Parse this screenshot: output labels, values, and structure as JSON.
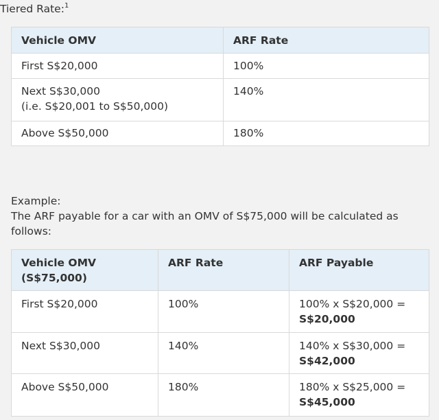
{
  "tiered": {
    "title": "Tiered Rate:",
    "footnote": "1",
    "headers": [
      "Vehicle OMV",
      "ARF Rate"
    ],
    "rows": [
      {
        "omv": "First S$20,000",
        "omv2": "",
        "rate": "100%"
      },
      {
        "omv": "Next S$30,000",
        "omv2": "(i.e. S$20,001 to S$50,000)",
        "rate": "140%"
      },
      {
        "omv": "Above S$50,000",
        "omv2": "",
        "rate": "180%"
      }
    ]
  },
  "example": {
    "label": "Example:",
    "text": "The ARF payable for a car with an OMV of S$75,000 will be calculated as follows:",
    "headers": {
      "omv": "Vehicle OMV",
      "omv_sub": "(S$75,000)",
      "rate": "ARF Rate",
      "payable": "ARF Payable"
    },
    "rows": [
      {
        "omv": "First S$20,000",
        "rate": "100%",
        "calc": "100% x S$20,000 =",
        "result": "S$20,000"
      },
      {
        "omv": "Next S$30,000",
        "rate": "140%",
        "calc": "140% x S$30,000 =",
        "result": "S$42,000"
      },
      {
        "omv": "Above S$50,000",
        "rate": "180%",
        "calc": "180% x S$25,000 =",
        "result": "S$45,000"
      }
    ]
  }
}
